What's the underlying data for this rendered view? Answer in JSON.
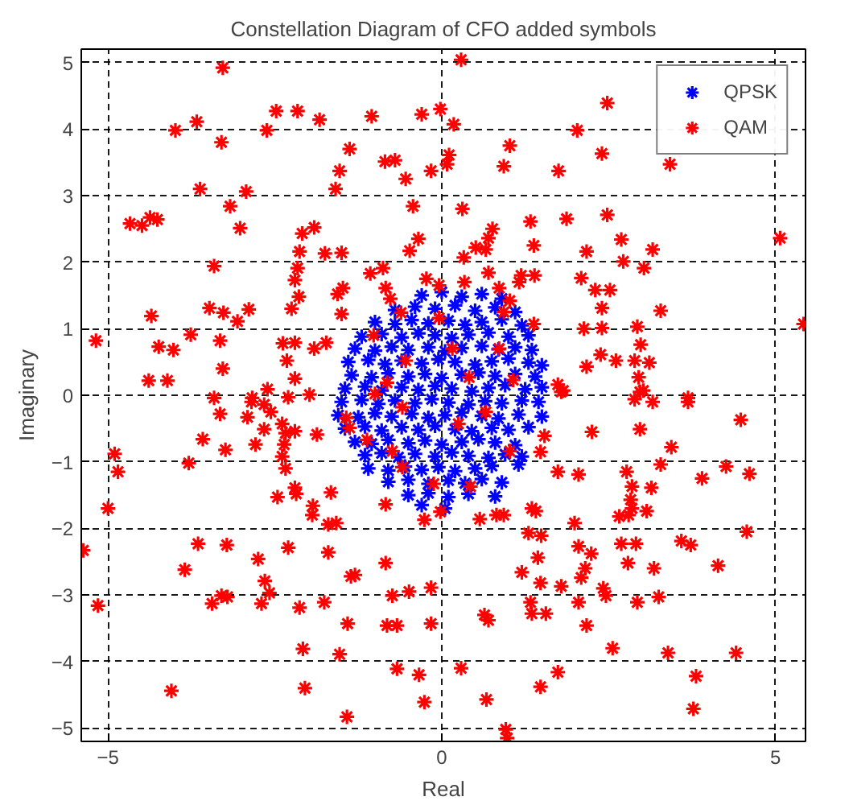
{
  "chart_data": {
    "type": "scatter",
    "title": "Constellation Diagram of CFO added symbols",
    "xlabel": "Real",
    "ylabel": "Imaginary",
    "xlim": [
      -5.4,
      5.45
    ],
    "ylim": [
      -5.2,
      5.2
    ],
    "xticks": [
      -5,
      0,
      5
    ],
    "yticks": [
      -5,
      -4,
      -3,
      -2,
      -1,
      0,
      1,
      2,
      3,
      4,
      5
    ],
    "grid": true,
    "legend": "top right",
    "marker": "cross",
    "series": [
      {
        "name": "QPSK",
        "color": "#0000ff",
        "x": [
          -0.3,
          0.0,
          0.3,
          0.6,
          0.9,
          -0.7,
          -0.4,
          -0.1,
          0.2,
          0.5,
          0.8,
          1.1,
          -1.0,
          -0.7,
          -0.45,
          -0.2,
          0.1,
          0.35,
          0.6,
          0.9,
          1.2,
          -1.2,
          -0.9,
          -0.6,
          -0.35,
          -0.1,
          0.15,
          0.4,
          0.7,
          1.0,
          1.3,
          -1.3,
          -1.0,
          -0.75,
          -0.5,
          -0.2,
          0.05,
          0.3,
          0.6,
          0.85,
          1.1,
          1.35,
          -1.4,
          -1.1,
          -0.85,
          -0.6,
          -0.3,
          -0.05,
          0.2,
          0.5,
          0.75,
          1.0,
          1.3,
          1.5,
          -1.35,
          -1.05,
          -0.8,
          -0.5,
          -0.25,
          0.0,
          0.3,
          0.55,
          0.8,
          1.1,
          1.4,
          -1.45,
          -1.15,
          -0.9,
          -0.6,
          -0.35,
          -0.1,
          0.15,
          0.45,
          0.7,
          0.95,
          1.25,
          1.5,
          -1.5,
          -1.2,
          -0.95,
          -0.7,
          -0.4,
          -0.15,
          0.1,
          0.4,
          0.65,
          0.9,
          1.2,
          1.45,
          -1.55,
          -1.25,
          -1.0,
          -0.75,
          -0.45,
          -0.2,
          0.05,
          0.3,
          0.6,
          0.85,
          1.15,
          1.5,
          -1.45,
          -1.15,
          -0.9,
          -0.6,
          -0.35,
          -0.1,
          0.2,
          0.45,
          0.75,
          1.0,
          1.3,
          -1.3,
          -1.05,
          -0.8,
          -0.5,
          -0.25,
          0.0,
          0.3,
          0.55,
          0.8,
          1.1,
          -1.15,
          -0.9,
          -0.65,
          -0.4,
          -0.1,
          0.15,
          0.4,
          0.7,
          0.95,
          1.2,
          -1.1,
          -0.8,
          -0.55,
          -0.3,
          -0.05,
          0.2,
          0.5,
          0.75,
          1.15,
          -0.8,
          -0.5,
          -0.2,
          0.1,
          0.35,
          0.6,
          0.9,
          -0.5,
          -0.2,
          0.1,
          0.4,
          0.8,
          -0.3,
          0.05
        ],
        "values": [
          1.5,
          1.55,
          1.48,
          1.52,
          1.45,
          1.28,
          1.33,
          1.3,
          1.35,
          1.27,
          1.32,
          1.25,
          1.1,
          1.07,
          1.13,
          1.08,
          1.12,
          1.06,
          1.1,
          1.14,
          1.05,
          0.88,
          0.92,
          0.87,
          0.93,
          0.9,
          0.86,
          0.91,
          0.94,
          0.88,
          0.9,
          0.7,
          0.67,
          0.73,
          0.68,
          0.72,
          0.66,
          0.71,
          0.74,
          0.69,
          0.72,
          0.68,
          0.5,
          0.53,
          0.47,
          0.52,
          0.48,
          0.54,
          0.5,
          0.46,
          0.51,
          0.55,
          0.49,
          0.45,
          0.3,
          0.27,
          0.33,
          0.28,
          0.32,
          0.26,
          0.31,
          0.34,
          0.29,
          0.32,
          0.28,
          0.1,
          0.13,
          0.07,
          0.12,
          0.08,
          0.14,
          0.1,
          0.06,
          0.11,
          0.15,
          0.09,
          0.12,
          -0.1,
          -0.07,
          -0.13,
          -0.08,
          -0.12,
          -0.06,
          -0.11,
          -0.14,
          -0.09,
          -0.12,
          -0.08,
          -0.1,
          -0.3,
          -0.33,
          -0.27,
          -0.32,
          -0.28,
          -0.34,
          -0.3,
          -0.26,
          -0.31,
          -0.35,
          -0.29,
          -0.32,
          -0.5,
          -0.47,
          -0.53,
          -0.48,
          -0.52,
          -0.46,
          -0.51,
          -0.54,
          -0.49,
          -0.52,
          -0.48,
          -0.7,
          -0.73,
          -0.67,
          -0.72,
          -0.68,
          -0.74,
          -0.7,
          -0.66,
          -0.71,
          -0.75,
          -0.9,
          -0.87,
          -0.93,
          -0.88,
          -0.92,
          -0.86,
          -0.91,
          -0.94,
          -0.89,
          -0.92,
          -1.1,
          -1.13,
          -1.07,
          -1.12,
          -1.08,
          -1.14,
          -1.1,
          -1.06,
          -1.04,
          -1.3,
          -1.27,
          -1.33,
          -1.28,
          -1.32,
          -1.26,
          -1.31,
          -1.5,
          -1.47,
          -1.53,
          -1.48,
          -1.52,
          -1.65,
          -1.7
        ]
      },
      {
        "name": "QAM",
        "color": "#ff0000",
        "x": [
          -3.28,
          -3.99,
          -3.67,
          -3.3,
          -2.48,
          -2.16,
          -1.83,
          -2.62,
          -1.05,
          -0.3,
          -0.02,
          -1.38,
          -0.85,
          -0.7,
          -0.16,
          0.08,
          -0.54,
          -1.53,
          -1.59,
          -3.62,
          -2.93,
          -3.17,
          -0.43,
          -4.67,
          -4.49,
          -4.37,
          -4.26,
          -3.02,
          -2.09,
          -1.91,
          -0.35,
          -0.48,
          -2.13,
          -1.75,
          -1.5,
          -3.41,
          -2.16,
          -1.07,
          -0.88,
          -2.2,
          -1.48,
          -1.56,
          -0.23,
          -0.04,
          -0.84,
          -2.14,
          -0.77,
          -4.35,
          -3.48,
          -3.27,
          -2.89,
          -3.06,
          -2.25,
          -1.5,
          -0.61,
          -5.18,
          -3.76,
          -3.32,
          -4.24,
          -4.02,
          -2.38,
          -2.2,
          -1.91,
          -1.73,
          -2.32,
          -3.28,
          -4.39,
          -4.11,
          -2.2,
          -2.61,
          -1.02,
          -0.54,
          -0.04,
          -0.82,
          -3.41,
          -2.84,
          -1.98,
          0.29,
          0.18,
          2.48,
          2.03,
          1.02,
          2.4,
          0.11,
          0.93,
          1.75,
          3.42,
          0.31,
          1.33,
          1.87,
          2.48,
          0.76,
          0.7,
          0.51,
          0.66,
          0.33,
          1.38,
          2.69,
          2.17,
          3.16,
          2.72,
          3.03,
          5.07,
          0.7,
          1.19,
          1.39,
          2.09,
          1.16,
          0.34,
          0.86,
          2.3,
          2.52,
          1.02,
          0.93,
          2.4,
          3.28,
          1.38,
          2.13,
          2.4,
          2.93,
          5.42,
          2.98,
          2.38,
          2.61,
          2.17,
          2.89,
          3.11,
          2.95,
          0.16,
          0.41,
          0.86,
          1.07,
          1.74,
          1.82,
          3.02,
          3.69,
          -3.32,
          -2.85,
          -2.66,
          -2.3,
          -2.56,
          -2.91,
          -2.66,
          -2.39,
          -2.34,
          -2.2,
          -1.87,
          -3.58,
          -3.24,
          -2.79,
          -2.36,
          -2.39,
          -2.34,
          -4.9,
          -4.85,
          -3.79,
          -5.0,
          -2.46,
          -2.2,
          -2.18,
          -1.93,
          -1.94,
          -1.66,
          -1.7,
          -1.58,
          -0.84,
          -0.26,
          -0.02,
          -1.43,
          -1.38,
          -1.12,
          -5.37,
          -3.65,
          -3.22,
          -3.85,
          -2.75,
          -2.3,
          -1.7,
          -2.65,
          -2.58,
          -2.7,
          -3.3,
          -3.44,
          -3.21,
          -5.15,
          -2.13,
          -1.76,
          -1.36,
          -1.3,
          -0.84,
          -0.74,
          -0.49,
          -0.16,
          -1.41,
          -0.82,
          -0.67,
          -0.16,
          -2.08,
          -1.53,
          -0.67,
          -0.34,
          -0.26,
          -4.05,
          -2.05,
          -1.42,
          -1.0,
          -0.59,
          -0.59,
          -0.12,
          -0.74,
          1.79,
          2.97,
          2.89,
          3.16,
          3.69,
          4.48,
          2.25,
          2.97,
          3.44,
          3.28,
          4.26,
          4.61,
          3.9,
          1.54,
          1.48,
          1.74,
          2.05,
          2.77,
          2.85,
          3.14,
          2.83,
          2.85,
          3.07,
          2.66,
          2.8,
          1.35,
          1.41,
          1.99,
          0.57,
          0.82,
          0.93,
          0.43,
          1.3,
          1.49,
          2.05,
          2.24,
          2.69,
          2.91,
          3.59,
          3.73,
          4.57,
          1.44,
          2.79,
          3.18,
          4.14,
          1.2,
          2.09,
          2.15,
          1.48,
          1.79,
          2.42,
          2.46,
          2.05,
          2.93,
          3.25,
          1.33,
          1.35,
          1.56,
          0.64,
          0.7,
          2.17,
          2.56,
          3.39,
          4.41,
          0.29,
          1.74,
          1.48,
          3.81,
          0.67,
          3.77,
          0.96,
          0.98,
          0.66,
          0.25,
          1.02
        ],
        "values": [
          4.92,
          3.98,
          4.11,
          3.8,
          4.27,
          4.27,
          4.14,
          3.98,
          4.19,
          4.22,
          4.3,
          3.7,
          3.51,
          3.53,
          3.37,
          3.47,
          3.25,
          3.37,
          3.1,
          3.1,
          3.06,
          2.84,
          2.84,
          2.58,
          2.55,
          2.67,
          2.64,
          2.51,
          2.43,
          2.52,
          2.35,
          2.17,
          2.16,
          2.13,
          2.14,
          1.94,
          1.91,
          1.83,
          1.91,
          1.73,
          1.61,
          1.52,
          1.75,
          1.65,
          1.61,
          1.48,
          1.45,
          1.19,
          1.31,
          1.24,
          1.29,
          1.11,
          1.3,
          1.22,
          1.24,
          0.82,
          0.91,
          0.82,
          0.73,
          0.68,
          0.78,
          0.79,
          0.7,
          0.79,
          0.52,
          0.4,
          0.22,
          0.22,
          0.25,
          0.09,
          0.9,
          0.52,
          1.16,
          0.19,
          -0.04,
          -0.04,
          0.01,
          5.04,
          4.07,
          4.39,
          3.98,
          3.75,
          3.63,
          3.61,
          3.44,
          3.37,
          3.47,
          2.8,
          2.61,
          2.65,
          2.71,
          2.5,
          2.36,
          2.22,
          2.19,
          2.07,
          2.25,
          2.34,
          2.16,
          2.19,
          2.01,
          1.91,
          2.36,
          1.84,
          1.8,
          1.8,
          1.76,
          1.7,
          1.7,
          1.61,
          1.58,
          1.58,
          1.42,
          1.25,
          1.31,
          1.27,
          1.07,
          1.0,
          1.01,
          1.03,
          1.07,
          0.76,
          0.61,
          0.52,
          0.43,
          0.52,
          0.49,
          0.27,
          0.7,
          0.27,
          0.7,
          0.23,
          0.16,
          0.07,
          0.07,
          -0.04,
          -0.28,
          -0.1,
          -0.14,
          -0.03,
          -0.25,
          -0.33,
          -0.51,
          -0.43,
          -0.57,
          -0.54,
          -0.59,
          -0.66,
          -0.82,
          -0.74,
          -0.74,
          -0.92,
          -1.1,
          -0.88,
          -1.15,
          -1.02,
          -1.7,
          -1.53,
          -1.39,
          -1.48,
          -1.66,
          -1.8,
          -1.46,
          -1.94,
          -1.92,
          -1.64,
          -1.87,
          -1.75,
          -0.34,
          -0.49,
          -0.67,
          -2.33,
          -2.23,
          -2.25,
          -2.62,
          -2.46,
          -2.29,
          -2.36,
          -2.79,
          -2.97,
          -3.13,
          -3.01,
          -3.13,
          -3.03,
          -3.16,
          -3.19,
          -3.11,
          -2.72,
          -2.7,
          -2.52,
          -3.01,
          -2.95,
          -2.89,
          -3.43,
          -3.46,
          -3.46,
          -3.43,
          -3.81,
          -3.89,
          -4.11,
          -4.2,
          -4.61,
          -4.44,
          -4.4,
          -4.83,
          0.02,
          -0.18,
          -1.08,
          -1.33,
          -0.84,
          0.05,
          0.05,
          -0.06,
          -0.1,
          -0.1,
          -0.37,
          -0.55,
          -0.51,
          -0.78,
          -1.04,
          -1.07,
          -1.18,
          -1.25,
          -0.61,
          -0.85,
          -1.15,
          -1.19,
          -1.15,
          -1.37,
          -1.39,
          -1.57,
          -1.7,
          -1.74,
          -1.82,
          -1.8,
          -1.7,
          -1.74,
          -1.92,
          -1.86,
          -1.8,
          -1.8,
          -1.37,
          -2.07,
          -2.11,
          -2.27,
          -2.38,
          -2.23,
          -2.23,
          -2.19,
          -2.25,
          -2.05,
          -2.44,
          -2.52,
          -2.6,
          -2.56,
          -2.66,
          -2.74,
          -2.6,
          -2.82,
          -2.87,
          -2.9,
          -3.01,
          -3.11,
          -3.11,
          -3.03,
          -3.11,
          -3.28,
          -3.28,
          -3.3,
          -3.38,
          -3.46,
          -3.8,
          -3.87,
          -3.87,
          -4.1,
          -4.16,
          -4.38,
          -4.22,
          -4.57,
          -4.71,
          -5.02,
          -5.15,
          -0.25,
          -0.43,
          -0.84
        ]
      }
    ]
  }
}
